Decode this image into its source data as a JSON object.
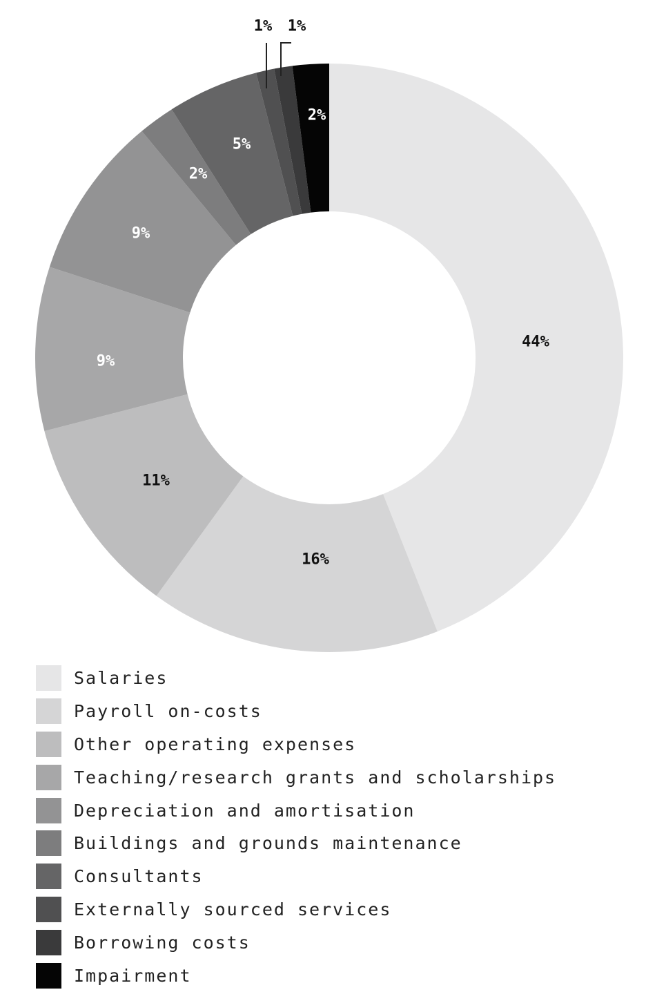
{
  "chart_data": {
    "type": "pie",
    "variant": "donut",
    "legend_position": "bottom-left",
    "slices": [
      {
        "name": "Salaries",
        "value": 44,
        "label": "44%",
        "color": "#e6e6e7",
        "label_color": "#111111"
      },
      {
        "name": "Payroll on-costs",
        "value": 16,
        "label": "16%",
        "color": "#d5d5d6",
        "label_color": "#111111"
      },
      {
        "name": "Other operating expenses",
        "value": 11,
        "label": "11%",
        "color": "#bdbdbe",
        "label_color": "#111111"
      },
      {
        "name": "Teaching/research grants and scholarships",
        "value": 9,
        "label": "9%",
        "color": "#a7a7a8",
        "label_color": "#ffffff"
      },
      {
        "name": "Depreciation and amortisation",
        "value": 9,
        "label": "9%",
        "color": "#939394",
        "label_color": "#ffffff"
      },
      {
        "name": "Buildings and grounds maintenance",
        "value": 2,
        "label": "2%",
        "color": "#7d7d7e",
        "label_color": "#ffffff"
      },
      {
        "name": "Consultants",
        "value": 5,
        "label": "5%",
        "color": "#656566",
        "label_color": "#ffffff"
      },
      {
        "name": "Externally sourced services",
        "value": 1,
        "label": "1%",
        "color": "#505051",
        "label_color": "#111111"
      },
      {
        "name": "Borrowing costs",
        "value": 1,
        "label": "1%",
        "color": "#3a3a3b",
        "label_color": "#111111"
      },
      {
        "name": "Impairment",
        "value": 2,
        "label": "2%",
        "color": "#050505",
        "label_color": "#ffffff"
      }
    ]
  }
}
